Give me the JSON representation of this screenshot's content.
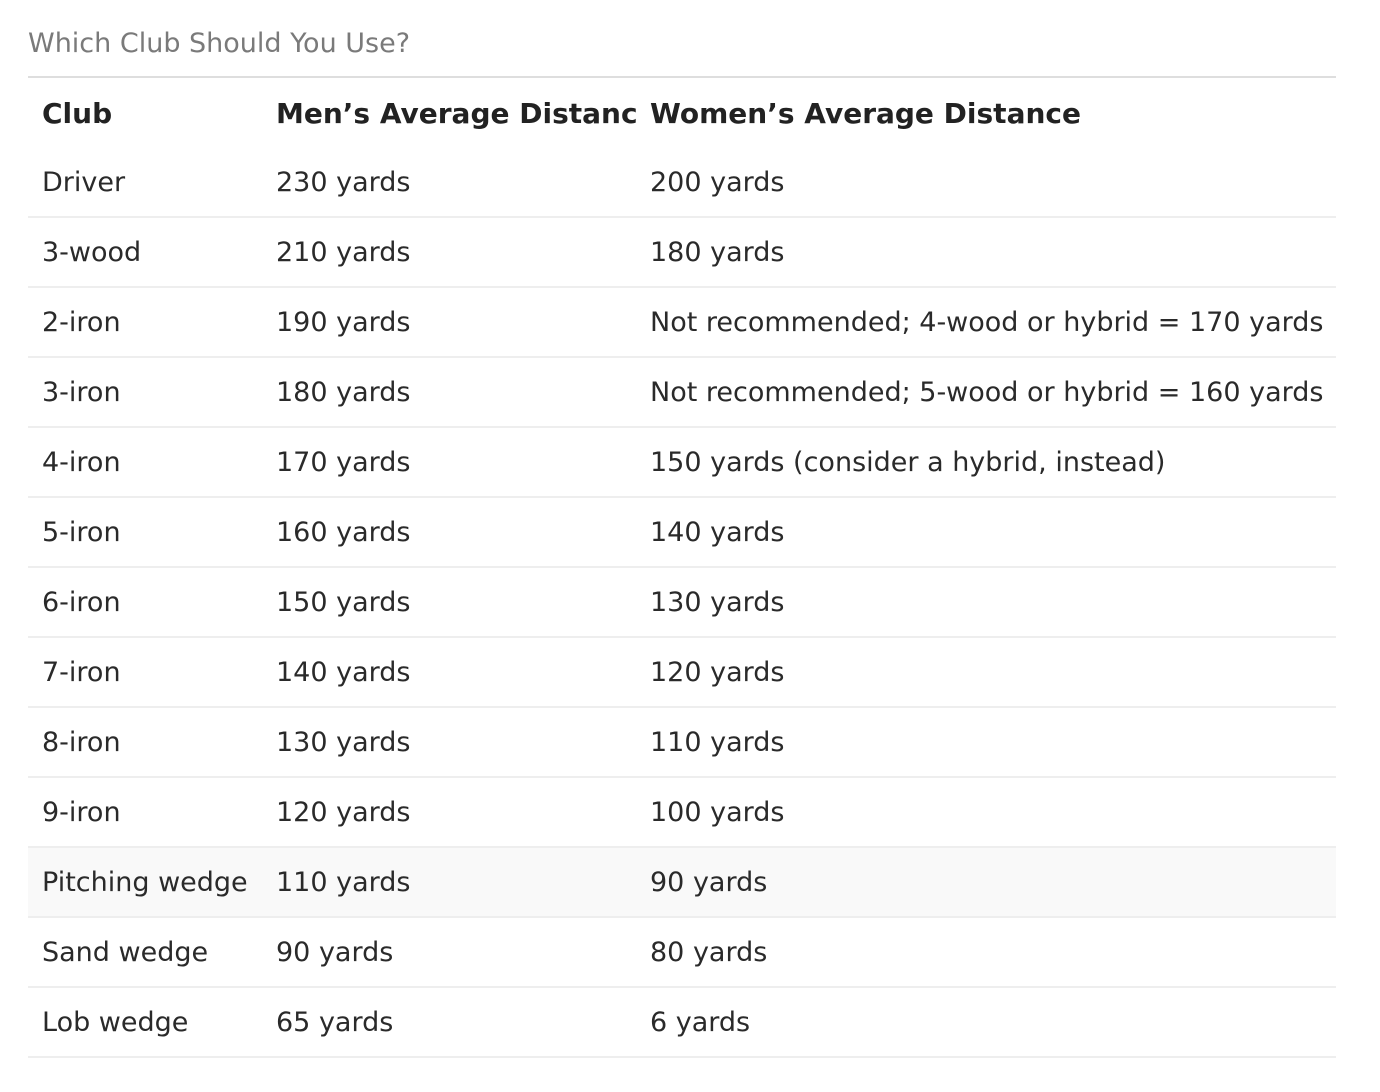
{
  "caption": "Which Club Should You Use?",
  "table": {
    "headers": [
      "Club",
      "Men’s Average Distance",
      "Women’s Average Distance"
    ],
    "rows": [
      {
        "club": "Driver",
        "men": "230 yards",
        "women": "200 yards"
      },
      {
        "club": "3-wood",
        "men": "210 yards",
        "women": "180 yards"
      },
      {
        "club": "2-iron",
        "men": "190 yards",
        "women": "Not recommended; 4-wood or hybrid = 170 yards"
      },
      {
        "club": "3-iron",
        "men": "180 yards",
        "women": "Not recommended; 5-wood or hybrid = 160 yards"
      },
      {
        "club": "4-iron",
        "men": "170 yards",
        "women": "150 yards (consider a hybrid, instead)"
      },
      {
        "club": "5-iron",
        "men": "160 yards",
        "women": "140 yards"
      },
      {
        "club": "6-iron",
        "men": "150 yards",
        "women": "130 yards"
      },
      {
        "club": "7-iron",
        "men": "140 yards",
        "women": "120 yards"
      },
      {
        "club": "8-iron",
        "men": "130 yards",
        "women": "110 yards"
      },
      {
        "club": "9-iron",
        "men": "120 yards",
        "women": "100 yards"
      },
      {
        "club": "Pitching wedge",
        "men": "110 yards",
        "women": "90 yards"
      },
      {
        "club": "Sand wedge",
        "men": "90 yards",
        "women": "80 yards"
      },
      {
        "club": "Lob wedge",
        "men": "65 yards",
        "women": "6 yards"
      }
    ]
  }
}
